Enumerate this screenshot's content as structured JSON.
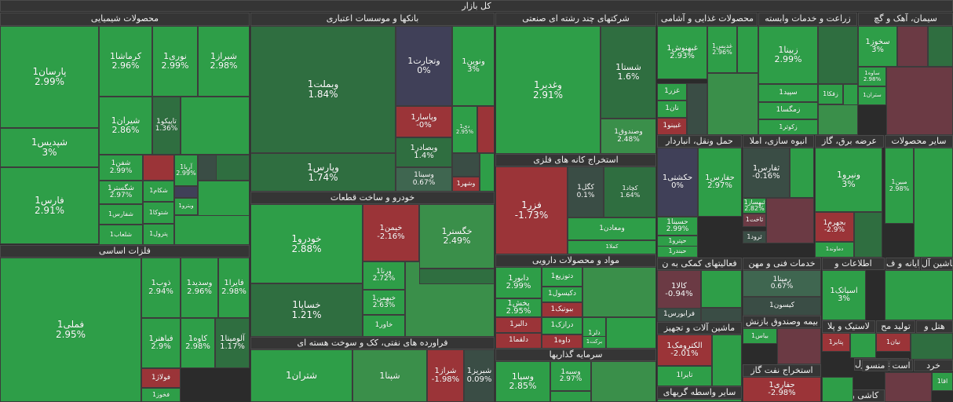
{
  "palette": {
    "g1": "#2e9e48",
    "g2": "#3a8f4a",
    "g3": "#2f6e40",
    "g4": "#3f6650",
    "r1": "#9b3438",
    "r2": "#6b3a44",
    "n": "#404058",
    "d": "#3a4d45"
  },
  "root_title": "کل بازار",
  "headers": [
    {
      "key": "shimi",
      "label": "محصولات شیمیایی"
    },
    {
      "key": "bank",
      "label": "بانکها و موسسات اعتباری"
    },
    {
      "key": "chand",
      "label": "شرکتهای چند رشته ای صنعتی"
    },
    {
      "key": "ghaza",
      "label": "محصولات غذایی و آشامی"
    },
    {
      "key": "zeraat",
      "label": "زراعت و خدمات وابسته"
    },
    {
      "key": "siman",
      "label": "سیمان، آهک و گچ"
    },
    {
      "key": "felezat",
      "label": "فلزات اساسی"
    },
    {
      "key": "khodro",
      "label": "خودرو و ساخت قطعات"
    },
    {
      "key": "kaneh",
      "label": "استخراج کانه های فلزی"
    },
    {
      "key": "naft",
      "label": "فراورده های نفتی، کک و سوخت هسته ای"
    },
    {
      "key": "hamlonaql",
      "label": "حمل ونقل، انباردار"
    },
    {
      "key": "anboh",
      "label": "انبوه سازی، املا"
    },
    {
      "key": "bargh",
      "label": "عرضه برق، گاز"
    },
    {
      "key": "sayer",
      "label": "سایر محصولات"
    },
    {
      "key": "daroo",
      "label": "مواد و محصولات دارویی"
    },
    {
      "key": "faaliat",
      "label": "فعالیتهای کمکی به ن"
    },
    {
      "key": "fani",
      "label": "خدمات فنی و مهن"
    },
    {
      "key": "etelaat",
      "label": "اطلاعات و"
    },
    {
      "key": "rayaneh",
      "label": "رایانه و ف"
    },
    {
      "key": "mashin",
      "label": "ماشین آل"
    },
    {
      "key": "sarmaye",
      "label": "سرمایه گذاریها"
    },
    {
      "key": "mashinalat",
      "label": "ماشین آلات و تجهیز"
    },
    {
      "key": "bimeh",
      "label": "بیمه وصندوق بازنش"
    },
    {
      "key": "lastik",
      "label": "لاستیک و پلا"
    },
    {
      "key": "tolid",
      "label": "تولید مح"
    },
    {
      "key": "hotel",
      "label": "هتل و"
    },
    {
      "key": "nafttgaz",
      "label": "استخراج نفت گاز"
    },
    {
      "key": "sakht",
      "label": "ساخت محصول"
    },
    {
      "key": "mensoj",
      "label": "منسو"
    },
    {
      "key": "ast",
      "label": "است"
    },
    {
      "key": "khord",
      "label": "خرد"
    },
    {
      "key": "vaseteh",
      "label": "سایر واسطه گریهای"
    },
    {
      "key": "kashi",
      "label": "کاشی و سرام"
    }
  ],
  "tiles": [
    {
      "sym": "پارسان1",
      "pct": "2.99%",
      "c": "g1"
    },
    {
      "sym": "کرماشا1",
      "pct": "2.96%",
      "c": "g1"
    },
    {
      "sym": "نوری1",
      "pct": "2.99%",
      "c": "g1"
    },
    {
      "sym": "شیراز1",
      "pct": "2.98%",
      "c": "g1"
    },
    {
      "sym": "شیران1",
      "pct": "2.86%",
      "c": "g1"
    },
    {
      "sym": "تاپیکو1",
      "pct": "1.36%",
      "c": "g3"
    },
    {
      "sym": "شپدیس1",
      "pct": "3%",
      "c": "g1"
    },
    {
      "sym": "شفن1",
      "pct": "2.99%",
      "c": "g1"
    },
    {
      "sym": "آریا1",
      "pct": "2.99%",
      "c": "g1"
    },
    {
      "sym": "شگستر1",
      "pct": "2.97%",
      "c": "g1"
    },
    {
      "sym": "شکام1",
      "pct": "",
      "c": "g1"
    },
    {
      "sym": "فارس1",
      "pct": "2.91%",
      "c": "g1"
    },
    {
      "sym": "شفارس1",
      "pct": "",
      "c": "g1"
    },
    {
      "sym": "شتوکا1",
      "pct": "",
      "c": "g1"
    },
    {
      "sym": "ویترو1",
      "pct": "",
      "c": "g1"
    },
    {
      "sym": "شلعاب1",
      "pct": "",
      "c": "g1"
    },
    {
      "sym": "پترول1",
      "pct": "",
      "c": "g1"
    },
    {
      "sym": "وبملت1",
      "pct": "1.84%",
      "c": "g3"
    },
    {
      "sym": "وتجارت1",
      "pct": "0%",
      "c": "n"
    },
    {
      "sym": "ونوین1",
      "pct": "3%",
      "c": "g1"
    },
    {
      "sym": "وپاسار1",
      "pct": "-0%",
      "c": "r1"
    },
    {
      "sym": "دی1",
      "pct": "2.95%",
      "c": "g1"
    },
    {
      "sym": "وپارس1",
      "pct": "1.74%",
      "c": "g3"
    },
    {
      "sym": "وبصادر1",
      "pct": "1.4%",
      "c": "g3"
    },
    {
      "sym": "وسینا1",
      "pct": "0.67%",
      "c": "g4"
    },
    {
      "sym": "وشهر1",
      "pct": "",
      "c": "r1"
    },
    {
      "sym": "وغدیر1",
      "pct": "2.91%",
      "c": "g1"
    },
    {
      "sym": "شستا1",
      "pct": "1.6%",
      "c": "g3"
    },
    {
      "sym": "وصندوق1",
      "pct": "2.48%",
      "c": "g2"
    },
    {
      "sym": "غبهنوش1",
      "pct": "2.93%",
      "c": "g1"
    },
    {
      "sym": "غدیس1",
      "pct": "2.96%",
      "c": "g1"
    },
    {
      "sym": "غزر1",
      "pct": "",
      "c": "g1"
    },
    {
      "sym": "نان1",
      "pct": "",
      "c": "g1"
    },
    {
      "sym": "غبینو1",
      "pct": "",
      "c": "r1"
    },
    {
      "sym": "زبینا1",
      "pct": "2.99%",
      "c": "g1"
    },
    {
      "sym": "زفکا1",
      "pct": "",
      "c": "g1"
    },
    {
      "sym": "سپید1",
      "pct": "",
      "c": "g1"
    },
    {
      "sym": "زمگسا1",
      "pct": "",
      "c": "g1"
    },
    {
      "sym": "زکوثر1",
      "pct": "",
      "c": "g1"
    },
    {
      "sym": "سخوز1",
      "pct": "3%",
      "c": "g1"
    },
    {
      "sym": "ساوه1",
      "pct": "2.98%",
      "c": "g1"
    },
    {
      "sym": "ستران1",
      "pct": "",
      "c": "g1"
    },
    {
      "sym": "فملی1",
      "pct": "2.95%",
      "c": "g1"
    },
    {
      "sym": "ذوب1",
      "pct": "2.94%",
      "c": "g1"
    },
    {
      "sym": "وسدید1",
      "pct": "2.96%",
      "c": "g1"
    },
    {
      "sym": "فایرا1",
      "pct": "2.98%",
      "c": "g1"
    },
    {
      "sym": "فباهنر1",
      "pct": "2.9%",
      "c": "g1"
    },
    {
      "sym": "کاوه1",
      "pct": "2.98%",
      "c": "g1"
    },
    {
      "sym": "آلومینا1",
      "pct": "1.17%",
      "c": "g3"
    },
    {
      "sym": "فولاژ1",
      "pct": "",
      "c": "r1"
    },
    {
      "sym": "فخوز1",
      "pct": "",
      "c": "g1"
    },
    {
      "sym": "خودرو1",
      "pct": "2.88%",
      "c": "g1"
    },
    {
      "sym": "خیمن1",
      "pct": "-2.16%",
      "c": "r1"
    },
    {
      "sym": "خگستر1",
      "pct": "2.49%",
      "c": "g2"
    },
    {
      "sym": "ورنا1",
      "pct": "2.72%",
      "c": "g1"
    },
    {
      "sym": "خبهمن1",
      "pct": "2.63%",
      "c": "g1"
    },
    {
      "sym": "خاور1",
      "pct": "",
      "c": "g1"
    },
    {
      "sym": "خساپا1",
      "pct": "1.21%",
      "c": "g3"
    },
    {
      "sym": "فزر1",
      "pct": "-1.73%",
      "c": "r1"
    },
    {
      "sym": "کگل1",
      "pct": "0.1%",
      "c": "d"
    },
    {
      "sym": "کچاد1",
      "pct": "1.64%",
      "c": "g3"
    },
    {
      "sym": "ومعادن1",
      "pct": "",
      "c": "g1"
    },
    {
      "sym": "کملا1",
      "pct": "",
      "c": "g1"
    },
    {
      "sym": "دابور1",
      "pct": "2.99%",
      "c": "g1"
    },
    {
      "sym": "دتوزیع1",
      "pct": "",
      "c": "g1"
    },
    {
      "sym": "پخش1",
      "pct": "2.95%",
      "c": "g1"
    },
    {
      "sym": "دکیسول1",
      "pct": "",
      "c": "g1"
    },
    {
      "sym": "بیوتیک1",
      "pct": "",
      "c": "r1"
    },
    {
      "sym": "دالبر1",
      "pct": "",
      "c": "r1"
    },
    {
      "sym": "درازک1",
      "pct": "",
      "c": "g1"
    },
    {
      "sym": "دلر1",
      "pct": "",
      "c": "g1"
    },
    {
      "sym": "دلقما1",
      "pct": "",
      "c": "r1"
    },
    {
      "sym": "داوه1",
      "pct": "",
      "c": "r1"
    },
    {
      "sym": "برکت1",
      "pct": "",
      "c": "g1"
    },
    {
      "sym": "وسپا1",
      "pct": "2.85%",
      "c": "g1"
    },
    {
      "sym": "وسبه1",
      "pct": "2.97%",
      "c": "g1"
    },
    {
      "sym": "حکشتی1",
      "pct": "0%",
      "c": "n"
    },
    {
      "sym": "حفارس1",
      "pct": "2.97%",
      "c": "g1"
    },
    {
      "sym": "حسینا1",
      "pct": "2.99%",
      "c": "g1"
    },
    {
      "sym": "حپترو1",
      "pct": "",
      "c": "g1"
    },
    {
      "sym": "حبندر1",
      "pct": "",
      "c": "g1"
    },
    {
      "sym": "ثفارس1",
      "pct": "-0.16%",
      "c": "d"
    },
    {
      "sym": "ثبهساز1",
      "pct": "2.82%",
      "c": "g1"
    },
    {
      "sym": "ثاخت1",
      "pct": "",
      "c": "r2"
    },
    {
      "sym": "ثرود1",
      "pct": "",
      "c": "d"
    },
    {
      "sym": "ونیرو1",
      "pct": "3%",
      "c": "g1"
    },
    {
      "sym": "بجهرم1",
      "pct": "-2.9%",
      "c": "r1"
    },
    {
      "sym": "دماوند1",
      "pct": "",
      "c": "g1"
    },
    {
      "sym": "مبین1",
      "pct": "2.98%",
      "c": "g1"
    },
    {
      "sym": "کالا1",
      "pct": "-0.94%",
      "c": "r2"
    },
    {
      "sym": "فرابورس1",
      "pct": "",
      "c": "d"
    },
    {
      "sym": "رمپنا1",
      "pct": "0.67%",
      "c": "g4"
    },
    {
      "sym": "کیسون1",
      "pct": "",
      "c": "d"
    },
    {
      "sym": "اسیاتک1",
      "pct": "3%",
      "c": "g1"
    },
    {
      "sym": "الکترومک1",
      "pct": "-2.01%",
      "c": "r1"
    },
    {
      "sym": "تایرا1",
      "pct": "",
      "c": "g1"
    },
    {
      "sym": "بیاس1",
      "pct": "",
      "c": "g1"
    },
    {
      "sym": "پتایر1",
      "pct": "",
      "c": "r1"
    },
    {
      "sym": "نیان1",
      "pct": "",
      "c": "r1"
    },
    {
      "sym": "حفاری1",
      "pct": "-2.98%",
      "c": "r1"
    },
    {
      "sym": "شتران1",
      "pct": "",
      "c": "g1"
    },
    {
      "sym": "شپنا1",
      "pct": "",
      "c": "g2"
    },
    {
      "sym": "شراز1",
      "pct": "-1.98%",
      "c": "r1"
    },
    {
      "sym": "شبریز1",
      "pct": "0.09%",
      "c": "d"
    },
    {
      "sym": "اقا1",
      "pct": "",
      "c": "g1"
    }
  ]
}
